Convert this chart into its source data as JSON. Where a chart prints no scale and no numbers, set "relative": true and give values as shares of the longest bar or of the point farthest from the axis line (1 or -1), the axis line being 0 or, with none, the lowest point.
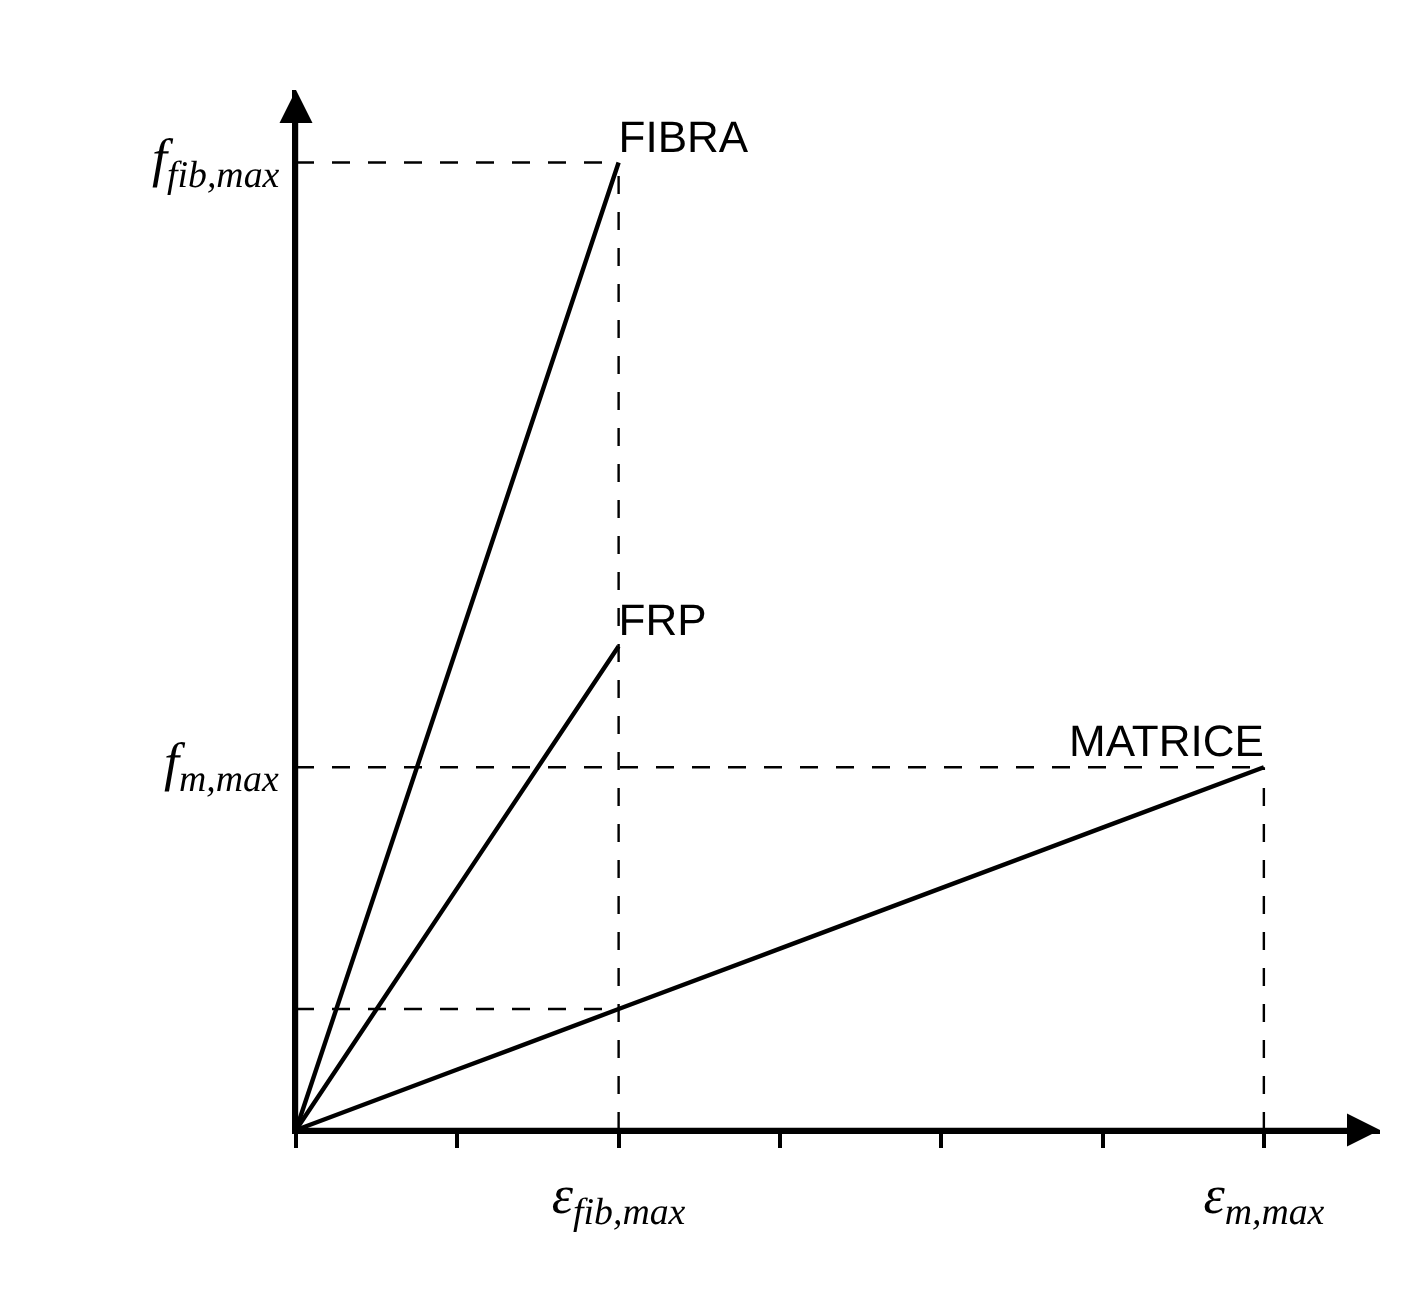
{
  "chart_data": {
    "type": "line",
    "relative": true,
    "legend": false,
    "grid": false,
    "marker": "none",
    "line_style": "solid",
    "categories": [
      null,
      null,
      "ε$_{fib,max}$",
      null,
      null,
      null,
      "ε$_{m,max}$"
    ],
    "series": [
      {
        "name": "FIBRA",
        "color": "#000000",
        "values": [
          0,
          0.5,
          1,
          null,
          null,
          null,
          null
        ]
      },
      {
        "name": "FRP",
        "color": "#000000",
        "values": [
          0,
          0.25,
          0.5,
          null,
          null,
          null,
          null
        ]
      },
      {
        "name": "MATRICE",
        "color": "#000000",
        "values": [
          0,
          0.0625,
          0.125,
          0.1875,
          0.25,
          0.3125,
          0.375
        ]
      }
    ],
    "ref_lines": [
      {
        "axis": "y",
        "value": 1,
        "label": "f$_{fib,max}$",
        "line_style": "dashed"
      },
      {
        "axis": "y",
        "value": 0.375,
        "label": "f$_{m,max}$",
        "line_style": "dashed"
      },
      {
        "axis": "y",
        "value": 0.125,
        "line_style": "dashed"
      },
      {
        "axis": "x",
        "value": "ε$_{fib,max}$",
        "line_style": "dashed"
      },
      {
        "axis": "x",
        "value": "ε$_{m,max}$",
        "line_style": "dashed"
      }
    ]
  }
}
